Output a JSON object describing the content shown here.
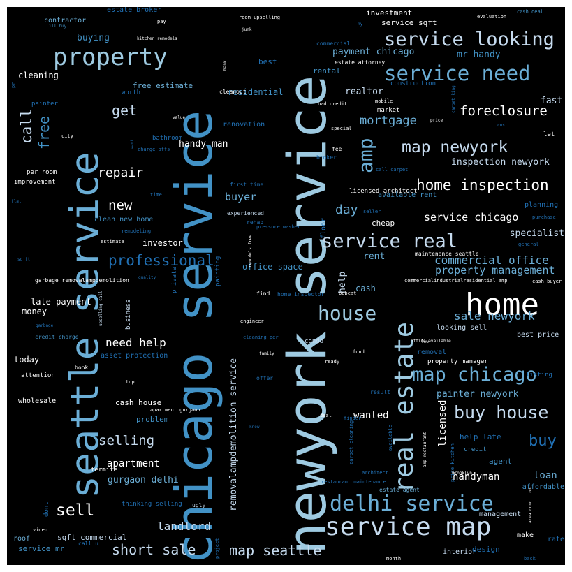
{
  "palette": {
    "background": "#000000",
    "frame": "#ffffff",
    "c0": "#ffffff",
    "c1": "#c6dbef",
    "c2": "#9ecae1",
    "c3": "#6baed6",
    "c4": "#4292c6",
    "c5": "#2171b5",
    "c6": "#08519c"
  },
  "words": [
    "newyork service",
    "chicago service",
    "seattle service",
    "property",
    "service looking",
    "service need",
    "real estate",
    "home",
    "service map",
    "delhi service",
    "map chicago",
    "buy house",
    "house",
    "service real",
    "home inspection",
    "map newyork",
    "foreclosure",
    "mortgage",
    "amp",
    "get",
    "free",
    "call",
    "professional",
    "repair",
    "new",
    "sell",
    "short sale",
    "map seattle",
    "need help",
    "selling",
    "landlord",
    "buy",
    "commercial office",
    "property management",
    "sale newyork",
    "painter newyork",
    "service chicago",
    "buyer",
    "day",
    "help",
    "cash",
    "rent",
    "removalampdemolition service",
    "inspection newyork",
    "handy man",
    "investor",
    "late payment",
    "money",
    "today",
    "apartment",
    "gurgaon delhi",
    "cash house",
    "wanted",
    "licensed",
    "handyman",
    "loan",
    "specialist",
    "fast",
    "realtor",
    "mr handy",
    "payment chicago",
    "investment",
    "service sqft",
    "rental",
    "estate broker",
    "contractor",
    "buying",
    "cleaning",
    "free estimate",
    "residential",
    "office space",
    "agent",
    "credit",
    "help late",
    "affordable",
    "management",
    "sqft commercial",
    "service mr",
    "interior",
    "looking sell",
    "best price",
    "wholesale",
    "attention",
    "termite",
    "roof",
    "video",
    "problem",
    "book",
    "asset protection",
    "clean new home",
    "renovation",
    "construction",
    "market",
    "bathroom",
    "painting",
    "private",
    "business",
    "condo",
    "cleanout",
    "best",
    "worth",
    "painter",
    "estate attorney",
    "commercial",
    "planning",
    "available rent",
    "licensed architect",
    "let",
    "cheap",
    "floor",
    "property manager",
    "removal",
    "listing",
    "design",
    "make",
    "rate",
    "thinking selling",
    "dont",
    "call u",
    "ugly",
    "project",
    "month",
    "back",
    "first time",
    "improvement",
    "per room",
    "charge offs",
    "time",
    "remodeling",
    "estimate",
    "garbage removalampdemolition",
    "quality",
    "bad credit",
    "mobile",
    "special",
    "fee",
    "broker",
    "call carpet",
    "seller",
    "purchase",
    "general",
    "cash buyer",
    "commercialindustrialresidential amp",
    "maintenance seattle",
    "home inspector",
    "bobcat",
    "find",
    "engineer",
    "cleaning per",
    "family",
    "fund",
    "ready",
    "offer",
    "result",
    "finder",
    "deal",
    "know",
    "carpet cleaning",
    "available",
    "amp restaurant",
    "price kitchen",
    "architect",
    "restaurant maintenance",
    "estate agent",
    "area condition",
    "upselling call",
    "remodels free",
    "experienced",
    "rehab",
    "pressure washer",
    "garbage",
    "credit charge",
    "sq ft",
    "flat",
    "pr",
    "value",
    "want",
    "city",
    "pay",
    "ill buy",
    "kitchen remodels",
    "bank",
    "room upselling",
    "ny",
    "junk",
    "evaluation",
    "cash deal",
    "carpet king",
    "price",
    "cost",
    "office available",
    "low",
    "top",
    "apartment gurgaon",
    "brooklyn",
    "attic",
    "cleaning",
    "sale",
    "last",
    "jk"
  ]
}
